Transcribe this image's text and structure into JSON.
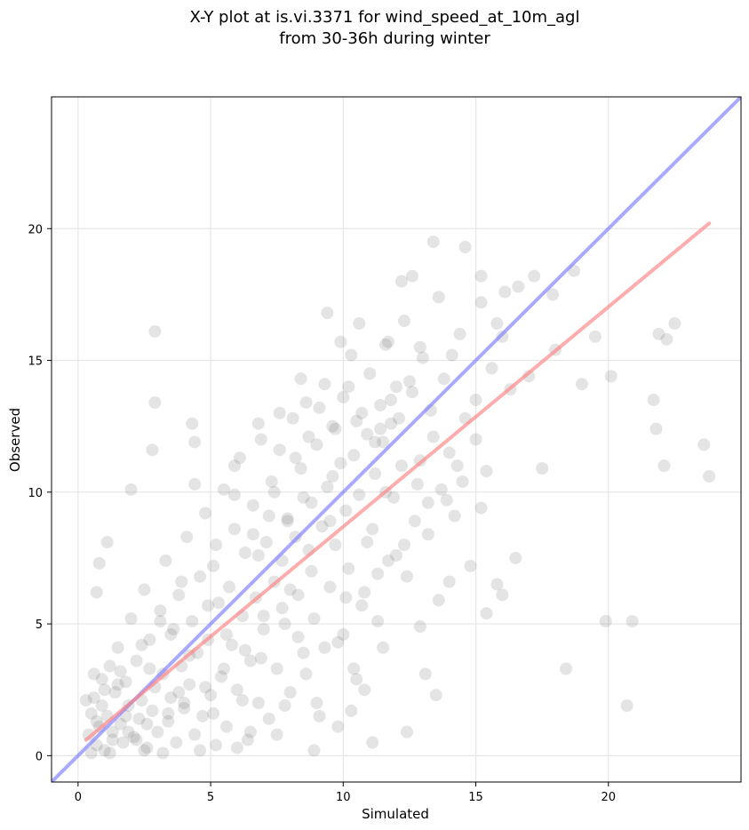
{
  "chart_data": {
    "type": "scatter",
    "title": [
      "X-Y plot at is.vi.3371 for wind_speed_at_10m_agl",
      "from 30-36h during winter"
    ],
    "xlabel": "Simulated",
    "ylabel": "Observed",
    "xlim": [
      -1,
      25
    ],
    "ylim": [
      -1,
      25
    ],
    "xticks": [
      0,
      5,
      10,
      15,
      20
    ],
    "yticks": [
      0,
      5,
      10,
      15,
      20
    ],
    "grid": true,
    "legend": "none",
    "colors": {
      "points": "#555555",
      "identity_line": "#7b7bff",
      "fit_line": "#ff8080",
      "grid": "#e6e6e6"
    },
    "lines": [
      {
        "role": "identity",
        "x": [
          -1,
          25
        ],
        "y": [
          -1,
          25
        ]
      },
      {
        "role": "fit",
        "x": [
          0.3,
          23.8
        ],
        "y": [
          0.6,
          20.2
        ]
      }
    ],
    "points": [
      [
        0.4,
        0.8
      ],
      [
        0.5,
        1.6
      ],
      [
        0.6,
        2.2
      ],
      [
        0.7,
        0.4
      ],
      [
        0.8,
        1.1
      ],
      [
        0.9,
        2.9
      ],
      [
        1.0,
        0.2
      ],
      [
        1.1,
        1.5
      ],
      [
        1.2,
        3.4
      ],
      [
        1.3,
        0.9
      ],
      [
        1.4,
        2.4
      ],
      [
        1.5,
        4.1
      ],
      [
        1.6,
        1.2
      ],
      [
        1.7,
        0.5
      ],
      [
        1.8,
        2.8
      ],
      [
        1.9,
        1.9
      ],
      [
        2.0,
        5.2
      ],
      [
        2.1,
        0.7
      ],
      [
        2.2,
        3.6
      ],
      [
        2.3,
        1.4
      ],
      [
        2.4,
        2.1
      ],
      [
        2.5,
        6.3
      ],
      [
        2.6,
        0.3
      ],
      [
        2.7,
        4.4
      ],
      [
        2.8,
        1.7
      ],
      [
        2.9,
        2.6
      ],
      [
        3.0,
        0.9
      ],
      [
        3.1,
        5.5
      ],
      [
        3.2,
        3.1
      ],
      [
        3.3,
        7.4
      ],
      [
        3.4,
        1.3
      ],
      [
        3.5,
        2.2
      ],
      [
        3.6,
        4.8
      ],
      [
        3.7,
        0.5
      ],
      [
        3.8,
        6.1
      ],
      [
        3.9,
        3.4
      ],
      [
        4.0,
        1.8
      ],
      [
        4.1,
        8.3
      ],
      [
        4.2,
        2.7
      ],
      [
        4.3,
        5.1
      ],
      [
        4.4,
        0.8
      ],
      [
        4.5,
        3.9
      ],
      [
        4.6,
        6.8
      ],
      [
        4.7,
        1.5
      ],
      [
        4.8,
        9.2
      ],
      [
        4.9,
        4.4
      ],
      [
        5.0,
        2.3
      ],
      [
        5.1,
        7.2
      ],
      [
        5.2,
        0.4
      ],
      [
        5.3,
        5.8
      ],
      [
        5.4,
        3.0
      ],
      [
        5.5,
        10.1
      ],
      [
        5.6,
        1.1
      ],
      [
        5.7,
        6.4
      ],
      [
        5.8,
        4.2
      ],
      [
        5.9,
        8.6
      ],
      [
        6.0,
        2.5
      ],
      [
        6.1,
        11.3
      ],
      [
        6.2,
        5.3
      ],
      [
        6.3,
        7.7
      ],
      [
        6.4,
        0.6
      ],
      [
        6.5,
        3.6
      ],
      [
        6.6,
        9.5
      ],
      [
        6.7,
        6.0
      ],
      [
        6.8,
        2.0
      ],
      [
        6.9,
        12.0
      ],
      [
        7.0,
        4.8
      ],
      [
        7.1,
        8.1
      ],
      [
        7.2,
        1.4
      ],
      [
        7.3,
        10.4
      ],
      [
        7.4,
        6.6
      ],
      [
        7.5,
        3.3
      ],
      [
        7.6,
        11.6
      ],
      [
        7.7,
        7.4
      ],
      [
        7.8,
        5.0
      ],
      [
        7.9,
        9.0
      ],
      [
        8.0,
        2.4
      ],
      [
        8.1,
        12.8
      ],
      [
        8.2,
        8.3
      ],
      [
        8.3,
        6.1
      ],
      [
        8.4,
        10.9
      ],
      [
        8.5,
        3.9
      ],
      [
        8.6,
        13.4
      ],
      [
        8.7,
        7.8
      ],
      [
        8.8,
        9.6
      ],
      [
        8.9,
        5.2
      ],
      [
        9.0,
        11.8
      ],
      [
        9.1,
        1.5
      ],
      [
        9.2,
        8.7
      ],
      [
        9.3,
        14.1
      ],
      [
        9.4,
        10.2
      ],
      [
        9.5,
        6.4
      ],
      [
        9.6,
        12.5
      ],
      [
        9.7,
        8.0
      ],
      [
        9.8,
        4.3
      ],
      [
        9.9,
        11.1
      ],
      [
        10.0,
        13.6
      ],
      [
        10.1,
        9.3
      ],
      [
        10.2,
        7.1
      ],
      [
        10.3,
        15.2
      ],
      [
        10.4,
        11.4
      ],
      [
        10.5,
        2.9
      ],
      [
        10.6,
        9.9
      ],
      [
        10.7,
        13.0
      ],
      [
        10.8,
        6.2
      ],
      [
        10.9,
        12.2
      ],
      [
        11.0,
        14.5
      ],
      [
        11.1,
        8.6
      ],
      [
        11.2,
        10.7
      ],
      [
        11.3,
        5.1
      ],
      [
        11.4,
        13.3
      ],
      [
        11.5,
        11.9
      ],
      [
        11.6,
        15.6
      ],
      [
        11.7,
        7.4
      ],
      [
        11.8,
        12.6
      ],
      [
        11.9,
        9.8
      ],
      [
        12.0,
        14.0
      ],
      [
        12.2,
        11.0
      ],
      [
        12.4,
        6.8
      ],
      [
        12.6,
        13.8
      ],
      [
        12.8,
        10.3
      ],
      [
        13.0,
        15.1
      ],
      [
        13.2,
        8.4
      ],
      [
        13.4,
        12.1
      ],
      [
        13.6,
        5.9
      ],
      [
        13.8,
        14.3
      ],
      [
        14.0,
        11.5
      ],
      [
        14.2,
        9.1
      ],
      [
        14.4,
        16.0
      ],
      [
        14.6,
        12.8
      ],
      [
        14.8,
        7.2
      ],
      [
        15.0,
        13.5
      ],
      [
        15.2,
        17.2
      ],
      [
        15.4,
        10.8
      ],
      [
        15.6,
        14.7
      ],
      [
        15.8,
        6.5
      ],
      [
        16.0,
        15.9
      ],
      [
        16.3,
        13.9
      ],
      [
        16.6,
        17.8
      ],
      [
        17.0,
        14.4
      ],
      [
        17.5,
        10.9
      ],
      [
        18.0,
        15.4
      ],
      [
        18.4,
        3.3
      ],
      [
        18.7,
        18.4
      ],
      [
        19.0,
        14.1
      ],
      [
        19.5,
        15.9
      ],
      [
        19.9,
        5.1
      ],
      [
        20.1,
        14.4
      ],
      [
        20.7,
        1.9
      ],
      [
        20.9,
        5.1
      ],
      [
        21.7,
        13.5
      ],
      [
        21.8,
        12.4
      ],
      [
        21.9,
        16.0
      ],
      [
        22.1,
        11.0
      ],
      [
        22.2,
        15.8
      ],
      [
        22.5,
        16.4
      ],
      [
        23.6,
        11.8
      ],
      [
        23.8,
        10.6
      ],
      [
        13.4,
        19.5
      ],
      [
        14.6,
        19.3
      ],
      [
        9.4,
        16.8
      ],
      [
        10.6,
        16.4
      ],
      [
        12.6,
        18.2
      ],
      [
        12.2,
        18.0
      ],
      [
        2.9,
        16.1
      ],
      [
        2.9,
        13.4
      ],
      [
        2.0,
        10.1
      ],
      [
        2.8,
        11.6
      ],
      [
        0.8,
        7.3
      ],
      [
        1.1,
        8.1
      ],
      [
        0.7,
        6.2
      ],
      [
        15.2,
        18.2
      ],
      [
        16.1,
        17.6
      ],
      [
        17.2,
        18.2
      ],
      [
        17.9,
        17.5
      ],
      [
        15.8,
        16.4
      ],
      [
        13.6,
        17.4
      ],
      [
        10.3,
        1.7
      ],
      [
        11.1,
        0.5
      ],
      [
        10.8,
        2.5
      ],
      [
        12.4,
        0.9
      ],
      [
        13.1,
        3.1
      ],
      [
        13.5,
        2.3
      ],
      [
        9.8,
        1.1
      ],
      [
        8.9,
        0.2
      ],
      [
        12.9,
        4.9
      ],
      [
        14.0,
        6.6
      ],
      [
        15.4,
        5.4
      ],
      [
        16.0,
        6.1
      ],
      [
        16.5,
        7.5
      ],
      [
        15.2,
        9.4
      ],
      [
        13.9,
        9.7
      ],
      [
        11.5,
        4.1
      ],
      [
        10.4,
        3.3
      ],
      [
        9.0,
        2.0
      ],
      [
        7.5,
        0.8
      ],
      [
        6.0,
        0.3
      ],
      [
        5.1,
        1.6
      ],
      [
        4.6,
        0.2
      ],
      [
        3.8,
        2.4
      ],
      [
        3.2,
        0.1
      ],
      [
        2.5,
        0.2
      ],
      [
        1.8,
        1.5
      ],
      [
        1.2,
        0.1
      ],
      [
        0.9,
        1.9
      ],
      [
        0.6,
        3.1
      ],
      [
        0.3,
        2.1
      ],
      [
        0.5,
        0.1
      ],
      [
        1.5,
        2.7
      ],
      [
        2.2,
        0.6
      ],
      [
        2.7,
        3.3
      ],
      [
        3.5,
        4.6
      ],
      [
        4.2,
        3.8
      ],
      [
        4.9,
        5.7
      ],
      [
        5.6,
        4.6
      ],
      [
        6.2,
        2.1
      ],
      [
        6.9,
        3.7
      ],
      [
        7.7,
        5.6
      ],
      [
        8.3,
        4.5
      ],
      [
        8.8,
        7.0
      ],
      [
        9.5,
        8.9
      ],
      [
        10.1,
        6.0
      ],
      [
        10.9,
        8.1
      ],
      [
        11.6,
        10.0
      ],
      [
        12.3,
        8.0
      ],
      [
        12.9,
        11.2
      ],
      [
        13.7,
        10.1
      ],
      [
        14.3,
        11.0
      ],
      [
        7.2,
        9.1
      ],
      [
        6.6,
        8.4
      ],
      [
        5.9,
        9.9
      ],
      [
        5.2,
        8.0
      ],
      [
        4.4,
        10.3
      ],
      [
        3.9,
        6.6
      ],
      [
        3.1,
        5.1
      ],
      [
        2.4,
        4.2
      ],
      [
        1.6,
        3.2
      ],
      [
        1.0,
        2.5
      ],
      [
        0.7,
        1.3
      ],
      [
        1.3,
        0.6
      ],
      [
        8.7,
        12.1
      ],
      [
        9.1,
        13.2
      ],
      [
        8.2,
        11.3
      ],
      [
        7.4,
        10.0
      ],
      [
        6.8,
        7.6
      ],
      [
        7.9,
        8.9
      ],
      [
        8.5,
        9.8
      ],
      [
        9.7,
        12.4
      ],
      [
        10.5,
        12.7
      ],
      [
        11.2,
        11.9
      ],
      [
        11.8,
        13.5
      ],
      [
        12.5,
        14.2
      ],
      [
        13.3,
        13.1
      ],
      [
        14.1,
        15.2
      ],
      [
        10.2,
        14.0
      ],
      [
        9.6,
        10.6
      ],
      [
        11.4,
        12.4
      ],
      [
        12.1,
        12.8
      ],
      [
        8.0,
        6.3
      ],
      [
        7.0,
        5.3
      ],
      [
        6.3,
        4.0
      ],
      [
        5.5,
        3.3
      ],
      [
        4.8,
        2.6
      ],
      [
        4.0,
        2.0
      ],
      [
        3.4,
        1.6
      ],
      [
        2.6,
        1.2
      ],
      [
        1.9,
        0.9
      ],
      [
        6.5,
        0.9
      ],
      [
        7.8,
        1.9
      ],
      [
        8.6,
        3.1
      ],
      [
        9.3,
        4.1
      ],
      [
        10.0,
        4.6
      ],
      [
        10.7,
        5.7
      ],
      [
        11.3,
        6.9
      ],
      [
        12.0,
        7.6
      ],
      [
        12.7,
        8.9
      ],
      [
        13.2,
        9.6
      ],
      [
        14.5,
        10.4
      ],
      [
        15.0,
        12.0
      ],
      [
        4.3,
        12.6
      ],
      [
        4.4,
        11.9
      ],
      [
        5.9,
        11.0
      ],
      [
        6.8,
        12.6
      ],
      [
        7.6,
        13.0
      ],
      [
        8.4,
        14.3
      ],
      [
        9.9,
        15.7
      ],
      [
        11.7,
        15.7
      ],
      [
        12.9,
        15.5
      ],
      [
        12.3,
        16.5
      ]
    ]
  }
}
